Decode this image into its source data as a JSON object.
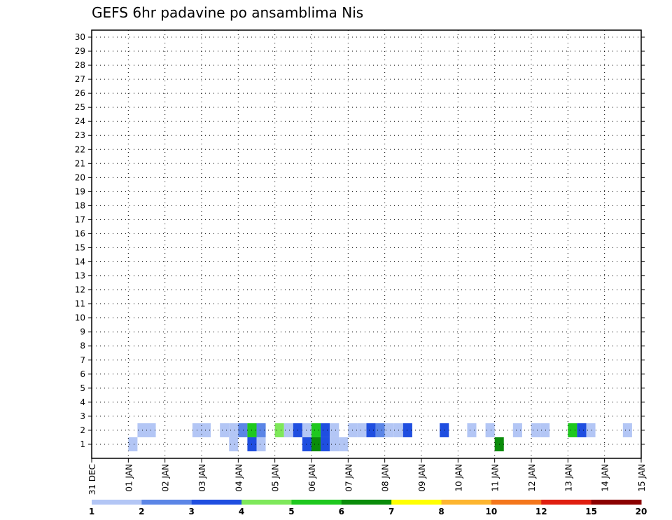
{
  "chart_data": {
    "type": "heatmap",
    "title": "GEFS 6hr padavine po ansamblima Nis",
    "xlabel": "",
    "ylabel": "",
    "x_ticks": [
      "31 DEC",
      "01 JAN",
      "02 JAN",
      "03 JAN",
      "04 JAN",
      "05 JAN",
      "06 JAN",
      "07 JAN",
      "08 JAN",
      "09 JAN",
      "10 JAN",
      "11 JAN",
      "12 JAN",
      "13 JAN",
      "14 JAN",
      "15 JAN"
    ],
    "y_ticks": [
      1,
      2,
      3,
      4,
      5,
      6,
      7,
      8,
      9,
      10,
      11,
      12,
      13,
      14,
      15,
      16,
      17,
      18,
      19,
      20,
      21,
      22,
      23,
      24,
      25,
      26,
      27,
      28,
      29,
      30
    ],
    "xlim": [
      "31 DEC",
      "15 JAN"
    ],
    "ylim": [
      0,
      30
    ],
    "x_step": "6hr",
    "grid": true,
    "colorbar": {
      "labels": [
        "1",
        "2",
        "3",
        "4",
        "5",
        "6",
        "7",
        "8",
        "10",
        "12",
        "15",
        "20"
      ],
      "colors": [
        "#b3c6f5",
        "#5b85e6",
        "#1f4ee0",
        "#7ee85a",
        "#1ec81e",
        "#0a8c0a",
        "#ffff00",
        "#fdb52f",
        "#f4761b",
        "#e01e10",
        "#8b0000"
      ]
    },
    "cells": [
      {
        "member": 1,
        "day": 1.0,
        "level": 0
      },
      {
        "member": 1,
        "day": 3.75,
        "level": 0
      },
      {
        "member": 1,
        "day": 4.25,
        "level": 2
      },
      {
        "member": 1,
        "day": 4.5,
        "level": 0
      },
      {
        "member": 1,
        "day": 5.75,
        "level": 2
      },
      {
        "member": 1,
        "day": 6.0,
        "level": 5
      },
      {
        "member": 1,
        "day": 6.25,
        "level": 2
      },
      {
        "member": 1,
        "day": 6.5,
        "level": 0
      },
      {
        "member": 1,
        "day": 6.75,
        "level": 0
      },
      {
        "member": 1,
        "day": 11.0,
        "level": 5
      },
      {
        "member": 2,
        "day": 1.25,
        "level": 0
      },
      {
        "member": 2,
        "day": 1.5,
        "level": 0
      },
      {
        "member": 2,
        "day": 2.75,
        "level": 0
      },
      {
        "member": 2,
        "day": 3.0,
        "level": 0
      },
      {
        "member": 2,
        "day": 3.5,
        "level": 0
      },
      {
        "member": 2,
        "day": 3.75,
        "level": 0
      },
      {
        "member": 2,
        "day": 4.0,
        "level": 1
      },
      {
        "member": 2,
        "day": 4.25,
        "level": 4
      },
      {
        "member": 2,
        "day": 4.5,
        "level": 1
      },
      {
        "member": 2,
        "day": 5.0,
        "level": 3
      },
      {
        "member": 2,
        "day": 5.25,
        "level": 0
      },
      {
        "member": 2,
        "day": 5.5,
        "level": 2
      },
      {
        "member": 2,
        "day": 5.75,
        "level": 0
      },
      {
        "member": 2,
        "day": 6.0,
        "level": 4
      },
      {
        "member": 2,
        "day": 6.25,
        "level": 2
      },
      {
        "member": 2,
        "day": 6.5,
        "level": 0
      },
      {
        "member": 2,
        "day": 7.0,
        "level": 0
      },
      {
        "member": 2,
        "day": 7.25,
        "level": 0
      },
      {
        "member": 2,
        "day": 7.5,
        "level": 2
      },
      {
        "member": 2,
        "day": 7.75,
        "level": 1
      },
      {
        "member": 2,
        "day": 8.0,
        "level": 0
      },
      {
        "member": 2,
        "day": 8.25,
        "level": 0
      },
      {
        "member": 2,
        "day": 8.5,
        "level": 2
      },
      {
        "member": 2,
        "day": 9.5,
        "level": 2
      },
      {
        "member": 2,
        "day": 10.25,
        "level": 0
      },
      {
        "member": 2,
        "day": 10.75,
        "level": 0
      },
      {
        "member": 2,
        "day": 11.5,
        "level": 0
      },
      {
        "member": 2,
        "day": 12.0,
        "level": 0
      },
      {
        "member": 2,
        "day": 12.25,
        "level": 0
      },
      {
        "member": 2,
        "day": 13.0,
        "level": 4
      },
      {
        "member": 2,
        "day": 13.25,
        "level": 2
      },
      {
        "member": 2,
        "day": 13.5,
        "level": 0
      },
      {
        "member": 2,
        "day": 14.5,
        "level": 0
      }
    ]
  }
}
